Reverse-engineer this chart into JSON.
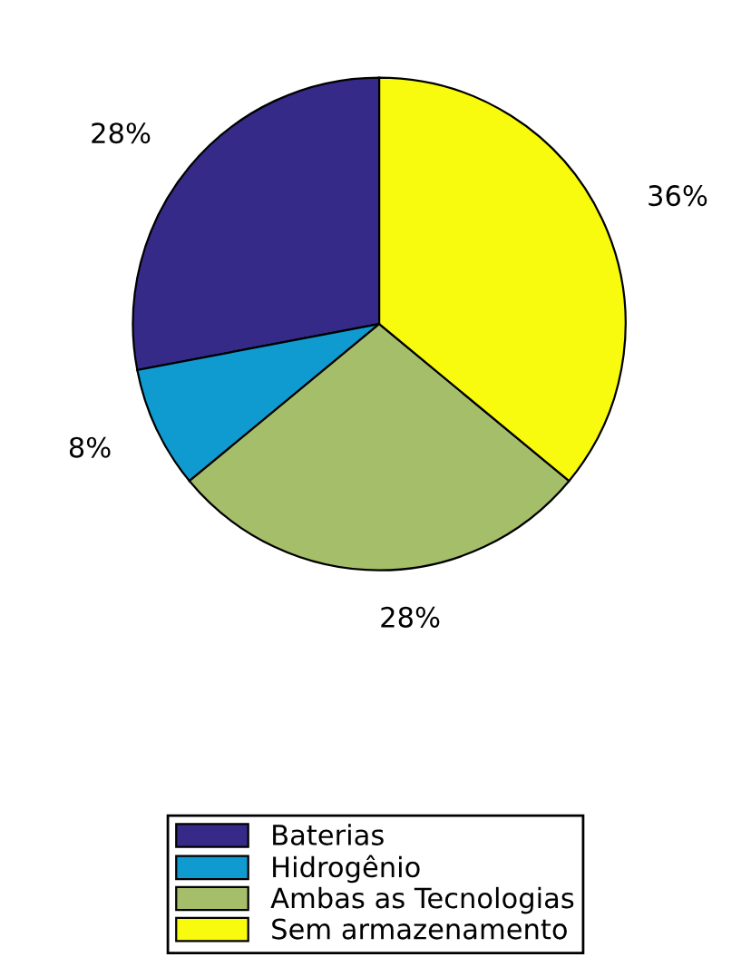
{
  "chart_data": {
    "type": "pie",
    "categories": [
      "Baterias",
      "Hidrogênio",
      "Ambas as Tecnologias",
      "Sem armazenamento"
    ],
    "values": [
      28,
      8,
      28,
      36
    ],
    "colors": [
      "#352a87",
      "#0f9bd0",
      "#a5be6a",
      "#f9fb0e"
    ],
    "value_labels": [
      "28%",
      "8%",
      "28%",
      "36%"
    ],
    "legend": "bottom"
  }
}
